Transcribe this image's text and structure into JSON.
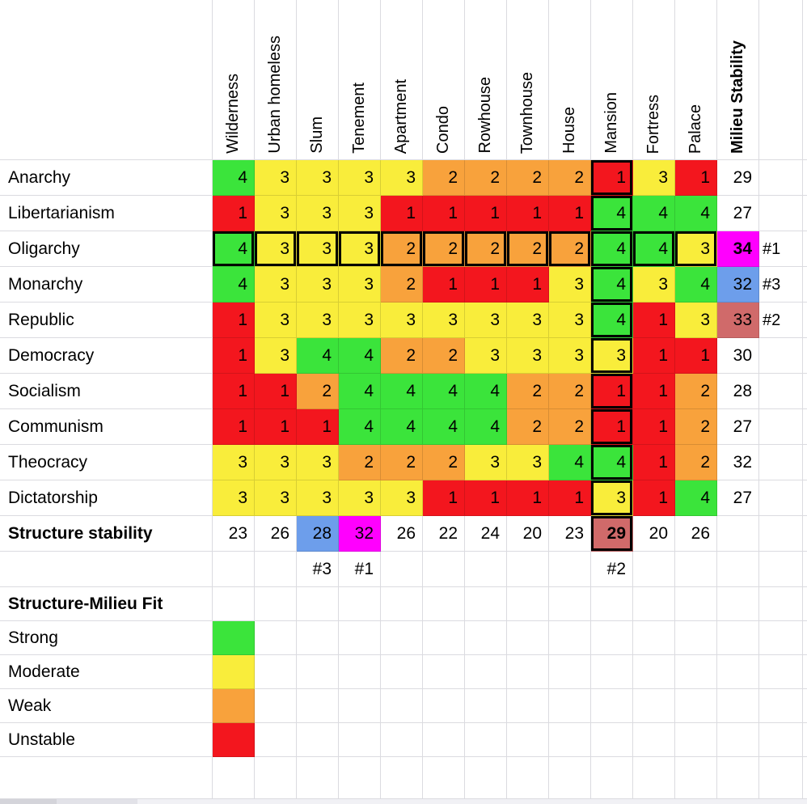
{
  "matrix": {
    "corner": "",
    "columns": [
      "Wilderness",
      "Urban homeless",
      "Slum",
      "Tenement",
      "Apartment",
      "Condo",
      "Rowhouse",
      "Townhouse",
      "House",
      "Mansion",
      "Fortress",
      "Palace"
    ],
    "milieu_header": "Milieu Stability",
    "value_colors": {
      "4": "green",
      "3": "yellow",
      "2": "orange",
      "1": "red"
    },
    "outline_column": 9,
    "rows": [
      {
        "label": "Anarchy",
        "values": [
          4,
          3,
          3,
          3,
          3,
          2,
          2,
          2,
          2,
          1,
          3,
          1
        ],
        "milieu": 29,
        "rank": ""
      },
      {
        "label": "Libertarianism",
        "values": [
          1,
          3,
          3,
          3,
          1,
          1,
          1,
          1,
          1,
          4,
          4,
          4
        ],
        "milieu": 27,
        "rank": ""
      },
      {
        "label": "Oligarchy",
        "values": [
          4,
          3,
          3,
          3,
          2,
          2,
          2,
          2,
          2,
          4,
          4,
          3
        ],
        "milieu": 34,
        "rank": "#1",
        "row_outline": true,
        "milieu_color": "magenta",
        "milieu_bold": true
      },
      {
        "label": "Monarchy",
        "values": [
          4,
          3,
          3,
          3,
          2,
          1,
          1,
          1,
          3,
          4,
          3,
          4
        ],
        "milieu": 32,
        "rank": "#3",
        "milieu_color": "blue"
      },
      {
        "label": "Republic",
        "values": [
          1,
          3,
          3,
          3,
          3,
          3,
          3,
          3,
          3,
          4,
          1,
          3
        ],
        "milieu": 33,
        "rank": "#2",
        "milieu_color": "salmon"
      },
      {
        "label": "Democracy",
        "values": [
          1,
          3,
          4,
          4,
          2,
          2,
          3,
          3,
          3,
          3,
          1,
          1
        ],
        "milieu": 30,
        "rank": ""
      },
      {
        "label": "Socialism",
        "values": [
          1,
          1,
          2,
          4,
          4,
          4,
          4,
          2,
          2,
          1,
          1,
          2
        ],
        "milieu": 28,
        "rank": ""
      },
      {
        "label": "Communism",
        "values": [
          1,
          1,
          1,
          4,
          4,
          4,
          4,
          2,
          2,
          1,
          1,
          2
        ],
        "milieu": 27,
        "rank": ""
      },
      {
        "label": "Theocracy",
        "values": [
          3,
          3,
          3,
          2,
          2,
          2,
          3,
          3,
          4,
          4,
          1,
          2
        ],
        "milieu": 32,
        "rank": ""
      },
      {
        "label": "Dictatorship",
        "values": [
          3,
          3,
          3,
          3,
          3,
          1,
          1,
          1,
          1,
          3,
          1,
          4
        ],
        "milieu": 27,
        "rank": ""
      }
    ],
    "structure_row": {
      "label": "Structure stability",
      "values": [
        23,
        26,
        28,
        32,
        26,
        22,
        24,
        20,
        23,
        29,
        20,
        26
      ],
      "cell_colors": {
        "2": "blue",
        "3": "magenta",
        "9": "salmon"
      },
      "bold_cells": [
        9
      ],
      "outline_cells": [
        9
      ]
    },
    "column_rank_row": {
      "2": "#3",
      "3": "#1",
      "9": "#2"
    }
  },
  "legend": {
    "title": "Structure-Milieu Fit",
    "items": [
      {
        "label": "Strong",
        "color": "green"
      },
      {
        "label": "Moderate",
        "color": "yellow"
      },
      {
        "label": "Weak",
        "color": "orange"
      },
      {
        "label": "Unstable",
        "color": "red"
      }
    ]
  },
  "colors": {
    "green": "#3be43b",
    "yellow": "#f9ed3b",
    "orange": "#f8a23c",
    "red": "#f3161e",
    "magenta": "#ff00fe",
    "blue": "#6d9eeb",
    "salmon": "#d06a6a"
  },
  "chart_data": {
    "type": "heatmap",
    "title": "",
    "x_categories": [
      "Wilderness",
      "Urban homeless",
      "Slum",
      "Tenement",
      "Apartment",
      "Condo",
      "Rowhouse",
      "Townhouse",
      "House",
      "Mansion",
      "Fortress",
      "Palace"
    ],
    "y_categories": [
      "Anarchy",
      "Libertarianism",
      "Oligarchy",
      "Monarchy",
      "Republic",
      "Democracy",
      "Socialism",
      "Communism",
      "Theocracy",
      "Dictatorship"
    ],
    "values": [
      [
        4,
        3,
        3,
        3,
        3,
        2,
        2,
        2,
        2,
        1,
        3,
        1
      ],
      [
        1,
        3,
        3,
        3,
        1,
        1,
        1,
        1,
        1,
        4,
        4,
        4
      ],
      [
        4,
        3,
        3,
        3,
        2,
        2,
        2,
        2,
        2,
        4,
        4,
        3
      ],
      [
        4,
        3,
        3,
        3,
        2,
        1,
        1,
        1,
        3,
        4,
        3,
        4
      ],
      [
        1,
        3,
        3,
        3,
        3,
        3,
        3,
        3,
        3,
        4,
        1,
        3
      ],
      [
        1,
        3,
        4,
        4,
        2,
        2,
        3,
        3,
        3,
        3,
        1,
        1
      ],
      [
        1,
        1,
        2,
        4,
        4,
        4,
        4,
        2,
        2,
        1,
        1,
        2
      ],
      [
        1,
        1,
        1,
        4,
        4,
        4,
        4,
        2,
        2,
        1,
        1,
        2
      ],
      [
        3,
        3,
        3,
        2,
        2,
        2,
        3,
        3,
        4,
        4,
        1,
        2
      ],
      [
        3,
        3,
        3,
        3,
        3,
        1,
        1,
        1,
        1,
        3,
        1,
        4
      ]
    ],
    "value_scale": {
      "4": "Strong",
      "3": "Moderate",
      "2": "Weak",
      "1": "Unstable"
    },
    "row_totals": {
      "name": "Milieu Stability",
      "values": [
        29,
        27,
        34,
        32,
        33,
        30,
        28,
        27,
        32,
        27
      ],
      "ranks": {
        "Oligarchy": "#1",
        "Republic": "#2",
        "Monarchy": "#3"
      }
    },
    "column_totals": {
      "name": "Structure stability",
      "values": [
        23,
        26,
        28,
        32,
        26,
        22,
        24,
        20,
        23,
        29,
        20,
        26
      ],
      "ranks": {
        "Tenement": "#1",
        "Mansion": "#2",
        "Slum": "#3"
      }
    },
    "highlights": {
      "outlined_row": "Oligarchy",
      "outlined_column": "Mansion"
    },
    "legend_title": "Structure-Milieu Fit",
    "legend_position": "bottom-left"
  }
}
